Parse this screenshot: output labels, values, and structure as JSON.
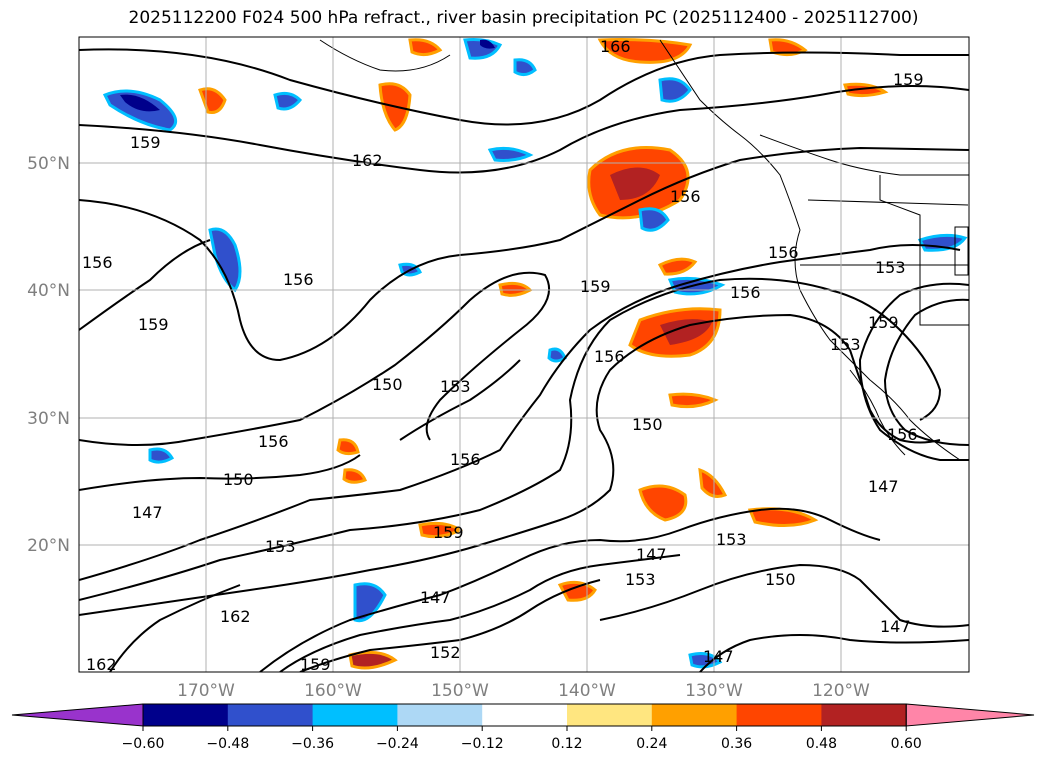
{
  "title": "2025112200 F024 500 hPa refract., river basin precipitation PC (2025112400 - 2025112700)",
  "latitude_labels": [
    "50°N",
    "40°N",
    "30°N",
    "20°N"
  ],
  "longitude_labels": [
    "170°W",
    "160°W",
    "150°W",
    "140°W",
    "130°W",
    "120°W"
  ],
  "contour_labels": [
    "166",
    "159",
    "159",
    "162",
    "156",
    "156",
    "159",
    "156",
    "159",
    "156",
    "156",
    "153",
    "159",
    "153",
    "150",
    "153",
    "156",
    "150",
    "156",
    "150",
    "147",
    "147",
    "159",
    "153",
    "162",
    "147",
    "153",
    "147",
    "150",
    "147",
    "153",
    "156",
    "147",
    "152",
    "156",
    "162",
    "159"
  ],
  "colorbar": {
    "ticks": [
      "−0.60",
      "−0.48",
      "−0.36",
      "−0.24",
      "−0.12",
      "0.12",
      "0.24",
      "0.36",
      "0.48",
      "0.60"
    ],
    "colors": [
      "#9933cc",
      "#00008b",
      "#3050cc",
      "#00bfff",
      "#add8f5",
      "#ffffff",
      "#ffe680",
      "#ffa000",
      "#ff4500",
      "#b22222",
      "#ff85a8"
    ]
  }
}
